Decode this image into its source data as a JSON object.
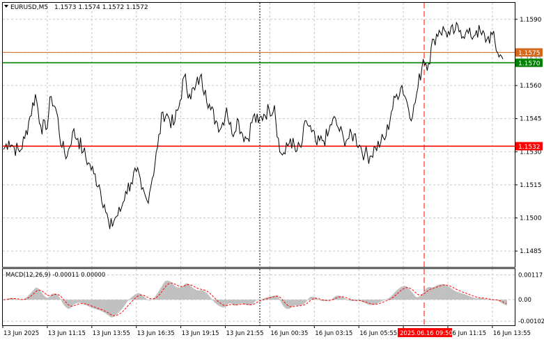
{
  "header": {
    "symbol": "EURUSD,M5",
    "ohlc": "1.1573 1.1574 1.1572 1.1572"
  },
  "colors": {
    "background": "#ffffff",
    "grid": "#c8c8c8",
    "price_line": "#000000",
    "level_resistance": "#ff0000",
    "level_ask": "#d2691e",
    "level_bid": "#008000",
    "macd_hist": "#c0c0c0",
    "macd_signal": "#ff0000",
    "vline_dotted": "#000000",
    "vline_dashed": "#ff0000"
  },
  "price_axis": {
    "ticks": [
      "1.1590",
      "1.1560",
      "1.1545",
      "1.1530",
      "1.1515",
      "1.1500",
      "1.1485"
    ],
    "tick_values": [
      1.159,
      1.156,
      1.1545,
      1.153,
      1.1515,
      1.15,
      1.1485
    ],
    "hidden_grid_values": [
      1.1575
    ],
    "range": [
      1.14778,
      1.15975
    ],
    "levels": [
      {
        "name": "ask",
        "label": "1.1575",
        "value": 1.1575,
        "color": "#d2691e"
      },
      {
        "name": "bid",
        "label": "1.1570",
        "value": 1.15703,
        "color": "#008000"
      },
      {
        "name": "horizontal-line",
        "label": "1.1532",
        "value": 1.15325,
        "color": "#ff0000"
      }
    ],
    "extra_tick": "1.1572"
  },
  "macd": {
    "title": "MACD(12,26,9) -0.00011 0.00000",
    "ticks": [
      "0.00117",
      "0.00",
      "-0.00102"
    ],
    "tick_values": [
      0.00117,
      0.0,
      -0.00102
    ],
    "range": [
      -0.00121,
      0.00145
    ]
  },
  "time_axis": {
    "labels": [
      "13 Jun 2025",
      "13 Jun 11:15",
      "13 Jun 13:55",
      "13 Jun 16:35",
      "13 Jun 19:15",
      "13 Jun 21:55",
      "16 Jun 00:35",
      "16 Jun 03:15",
      "16 Jun 05:55",
      "16 Jun 08:35",
      "16 Jun 11:15",
      "16 Jun 13:55"
    ],
    "highlight_label": "2025.06.16 09:50"
  },
  "chart_data": {
    "type": "line",
    "x_labels": [
      "13 Jun 2025",
      "13 Jun 11:15",
      "13 Jun 13:55",
      "13 Jun 16:35",
      "13 Jun 19:15",
      "13 Jun 21:55",
      "16 Jun 00:35",
      "16 Jun 03:15",
      "16 Jun 05:55",
      "16 Jun 08:35",
      "16 Jun 11:15",
      "16 Jun 13:55"
    ],
    "series": [
      {
        "name": "EURUSD,M5",
        "values": [
          1.1531,
          1.1535,
          1.1532,
          1.153,
          1.1536,
          1.1546,
          1.1556,
          1.1542,
          1.154,
          1.1555,
          1.1548,
          1.1532,
          1.1528,
          1.1539,
          1.1536,
          1.153,
          1.1525,
          1.152,
          1.1515,
          1.1506,
          1.1495,
          1.15,
          1.1503,
          1.1512,
          1.1516,
          1.1521,
          1.1513,
          1.1508,
          1.1518,
          1.1532,
          1.1548,
          1.1546,
          1.1542,
          1.155,
          1.1564,
          1.1556,
          1.1558,
          1.1564,
          1.1558,
          1.1549,
          1.1544,
          1.1541,
          1.155,
          1.1538,
          1.1545,
          1.1538,
          1.1536,
          1.1546,
          1.1543,
          1.1547,
          1.1549,
          1.1551,
          1.153,
          1.1529,
          1.1536,
          1.153,
          1.1532,
          1.1544,
          1.1539,
          1.1533,
          1.1535,
          1.1537,
          1.1545,
          1.1541,
          1.1536,
          1.1536,
          1.1538,
          1.1533,
          1.1529,
          1.1528,
          1.1532,
          1.1534,
          1.1537,
          1.1548,
          1.1556,
          1.156,
          1.1552,
          1.1546,
          1.1559,
          1.1572,
          1.157,
          1.1581,
          1.1585,
          1.1585,
          1.1583,
          1.1585,
          1.1585,
          1.1584,
          1.1582,
          1.1585,
          1.1583,
          1.1581,
          1.1583,
          1.1575,
          1.1572
        ]
      }
    ],
    "ylim": [
      1.14778,
      1.15975
    ]
  }
}
